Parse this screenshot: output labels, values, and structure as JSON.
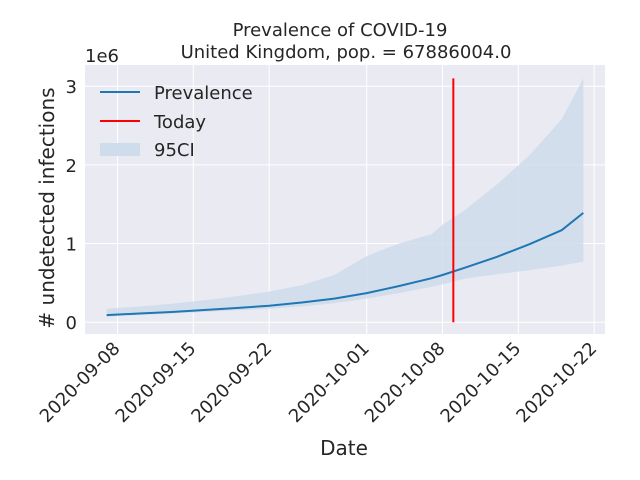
{
  "chart_data": {
    "type": "line",
    "title": "Prevalence of COVID-19",
    "subtitle": "United Kingdom, pop. = 67886004.0",
    "xlabel": "Date",
    "ylabel": "# undetected infections",
    "y_scale_label": "1e6",
    "xlim": [
      "2020-09-05",
      "2020-10-23"
    ],
    "ylim": [
      -0.15,
      3.27
    ],
    "x_ticks": [
      "2020-09-08",
      "2020-09-15",
      "2020-09-22",
      "2020-10-01",
      "2020-10-08",
      "2020-10-15",
      "2020-10-22"
    ],
    "y_ticks": [
      0,
      1,
      2,
      3
    ],
    "grid": true,
    "legend_position": "upper-left",
    "legend": [
      {
        "label": "Prevalence",
        "kind": "line",
        "color": "#1f77b4"
      },
      {
        "label": "Today",
        "kind": "line",
        "color": "#ff0000"
      },
      {
        "label": "95CI",
        "kind": "band",
        "color": "#cfdcec"
      }
    ],
    "today": {
      "date": "2020-10-09",
      "y_range": [
        0,
        3.1
      ]
    },
    "series": [
      {
        "name": "Prevalence",
        "x": [
          "2020-09-07",
          "2020-09-10",
          "2020-09-13",
          "2020-09-16",
          "2020-09-19",
          "2020-09-22",
          "2020-09-25",
          "2020-09-28",
          "2020-10-01",
          "2020-10-04",
          "2020-10-07",
          "2020-10-08",
          "2020-10-10",
          "2020-10-13",
          "2020-10-16",
          "2020-10-19",
          "2020-10-21"
        ],
        "values": [
          0.09,
          0.11,
          0.13,
          0.155,
          0.18,
          0.21,
          0.25,
          0.3,
          0.37,
          0.46,
          0.56,
          0.6,
          0.69,
          0.83,
          0.99,
          1.17,
          1.39
        ],
        "color": "#1f77b4"
      },
      {
        "name": "95CI",
        "x": [
          "2020-09-07",
          "2020-09-10",
          "2020-09-13",
          "2020-09-16",
          "2020-09-19",
          "2020-09-22",
          "2020-09-25",
          "2020-09-28",
          "2020-10-01",
          "2020-10-04",
          "2020-10-07",
          "2020-10-08",
          "2020-10-10",
          "2020-10-13",
          "2020-10-16",
          "2020-10-19",
          "2020-10-21"
        ],
        "lower": [
          0.07,
          0.09,
          0.11,
          0.13,
          0.15,
          0.17,
          0.2,
          0.24,
          0.3,
          0.37,
          0.45,
          0.48,
          0.55,
          0.61,
          0.66,
          0.72,
          0.77
        ],
        "upper": [
          0.17,
          0.2,
          0.235,
          0.28,
          0.33,
          0.39,
          0.47,
          0.6,
          0.84,
          1.0,
          1.12,
          1.24,
          1.42,
          1.75,
          2.12,
          2.58,
          3.1
        ],
        "color": "#cfdcec"
      }
    ]
  }
}
